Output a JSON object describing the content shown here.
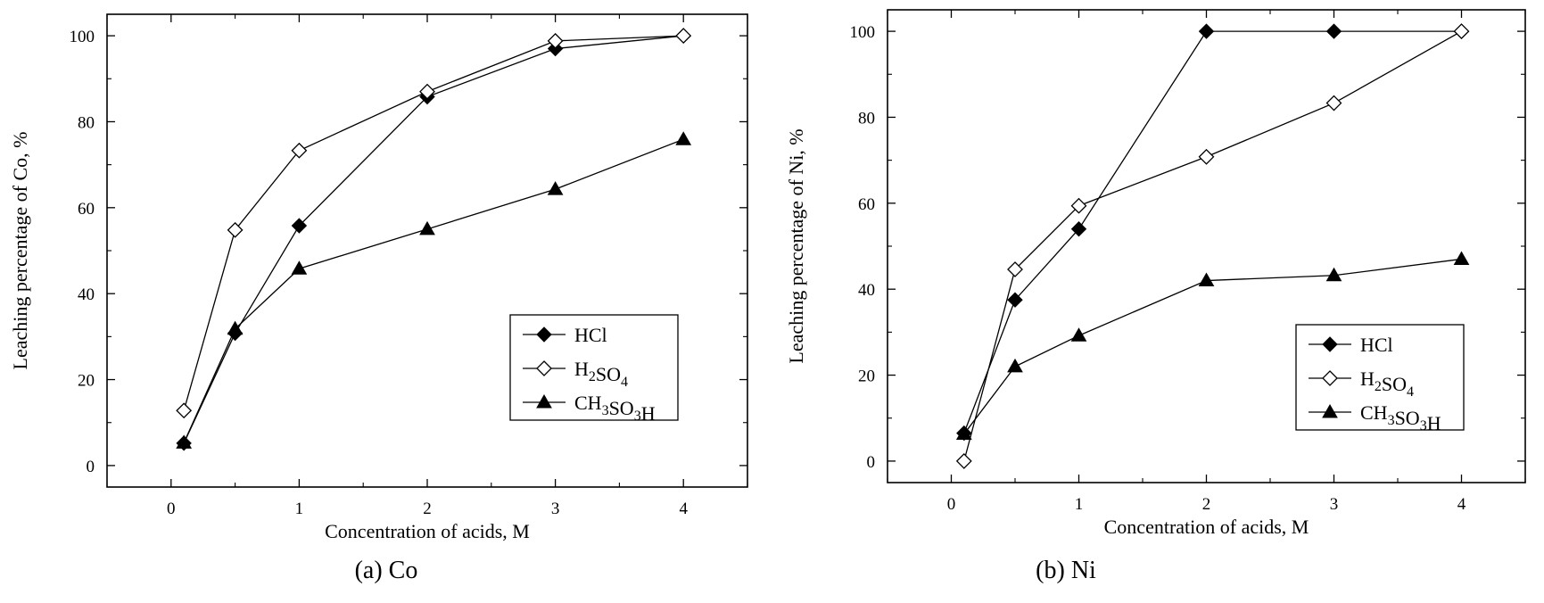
{
  "chart_data": [
    {
      "type": "line",
      "caption": "(a) Co",
      "xlabel": "Concentration of acids, M",
      "ylabel": "Leaching percentage of Co, %",
      "xlim": [
        -0.5,
        4.5
      ],
      "ylim": [
        -5,
        105
      ],
      "xticks": [
        0,
        1,
        2,
        3,
        4
      ],
      "yticks": [
        0,
        20,
        40,
        60,
        80,
        100
      ],
      "grid": false,
      "legend_position": "lower-right",
      "series": [
        {
          "name": "HCl",
          "name_parts": [
            [
              "HCl",
              ""
            ]
          ],
          "marker": "filled-diamond",
          "x": [
            0.1,
            0.5,
            1,
            2,
            3,
            4
          ],
          "y": [
            5.2,
            30.8,
            55.8,
            85.8,
            97.0,
            100.0
          ]
        },
        {
          "name": "H2SO4",
          "name_parts": [
            [
              "H",
              ""
            ],
            [
              "2",
              "sub"
            ],
            [
              "SO",
              ""
            ],
            [
              "4",
              "sub"
            ]
          ],
          "marker": "open-diamond",
          "x": [
            0.1,
            0.5,
            1,
            2,
            3,
            4
          ],
          "y": [
            12.8,
            54.8,
            73.3,
            87.0,
            98.8,
            100.0
          ]
        },
        {
          "name": "CH3SO3H",
          "name_parts": [
            [
              "CH",
              ""
            ],
            [
              "3",
              "sub"
            ],
            [
              "SO",
              ""
            ],
            [
              "3",
              "sub"
            ],
            [
              "H",
              ""
            ]
          ],
          "marker": "filled-triangle",
          "x": [
            0.1,
            0.5,
            1,
            2,
            3,
            4
          ],
          "y": [
            5.3,
            31.8,
            45.8,
            55.0,
            64.3,
            75.9
          ]
        }
      ]
    },
    {
      "type": "line",
      "caption": "(b) Ni",
      "xlabel": "Concentration of acids, M",
      "ylabel": "Leaching percentage of Ni, %",
      "xlim": [
        -0.5,
        4.5
      ],
      "ylim": [
        -5,
        105
      ],
      "xticks": [
        0,
        1,
        2,
        3,
        4
      ],
      "yticks": [
        0,
        20,
        40,
        60,
        80,
        100
      ],
      "grid": false,
      "legend_position": "lower-right",
      "series": [
        {
          "name": "HCl",
          "name_parts": [
            [
              "HCl",
              ""
            ]
          ],
          "marker": "filled-diamond",
          "x": [
            0.1,
            0.5,
            1,
            2,
            3,
            4
          ],
          "y": [
            6.5,
            37.5,
            54.0,
            100.0,
            100.0,
            100.0
          ]
        },
        {
          "name": "H2SO4",
          "name_parts": [
            [
              "H",
              ""
            ],
            [
              "2",
              "sub"
            ],
            [
              "SO",
              ""
            ],
            [
              "4",
              "sub"
            ]
          ],
          "marker": "open-diamond",
          "x": [
            0.1,
            0.5,
            1,
            2,
            3,
            4
          ],
          "y": [
            0.0,
            44.6,
            59.4,
            70.8,
            83.3,
            100.0
          ]
        },
        {
          "name": "CH3SO3H",
          "name_parts": [
            [
              "CH",
              ""
            ],
            [
              "3",
              "sub"
            ],
            [
              "SO",
              ""
            ],
            [
              "3",
              "sub"
            ],
            [
              "H",
              ""
            ]
          ],
          "marker": "filled-triangle",
          "x": [
            0.1,
            0.5,
            1,
            2,
            3,
            4
          ],
          "y": [
            6.3,
            22.0,
            29.2,
            42.0,
            43.2,
            47.0
          ]
        }
      ]
    }
  ]
}
